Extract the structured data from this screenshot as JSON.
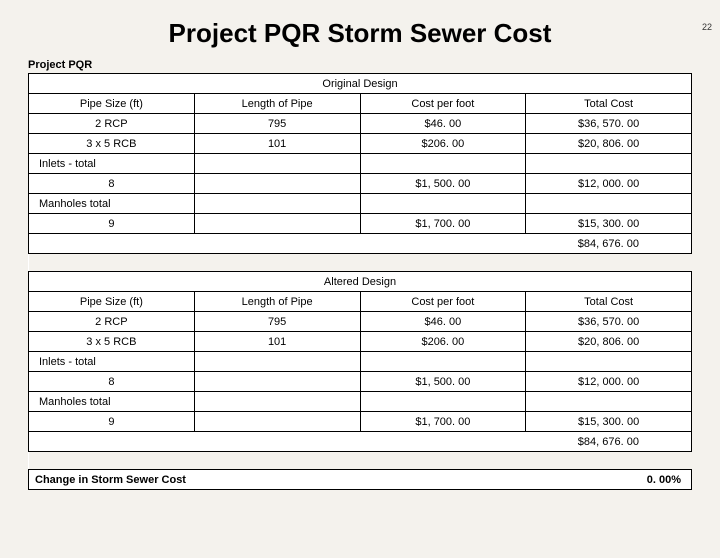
{
  "page_number": "22",
  "title": "Project PQR Storm Sewer Cost",
  "project_label": "Project PQR",
  "sections": {
    "original": {
      "header": "Original Design",
      "columns": [
        "Pipe Size (ft)",
        "Length of Pipe",
        "Cost per foot",
        "Total Cost"
      ],
      "rows": [
        [
          "2 RCP",
          "795",
          "$46. 00",
          "$36, 570. 00"
        ],
        [
          "3 x 5 RCB",
          "101",
          "$206. 00",
          "$20, 806. 00"
        ]
      ],
      "inlets_label": "Inlets - total",
      "inlets_row": [
        "8",
        "",
        "$1, 500. 00",
        "$12, 000. 00"
      ],
      "manholes_label": "Manholes total",
      "manholes_row": [
        "9",
        "",
        "$1, 700. 00",
        "$15, 300. 00"
      ],
      "total": "$84, 676. 00"
    },
    "altered": {
      "header": "Altered Design",
      "columns": [
        "Pipe Size (ft)",
        "Length of Pipe",
        "Cost per foot",
        "Total Cost"
      ],
      "rows": [
        [
          "2 RCP",
          "795",
          "$46. 00",
          "$36, 570. 00"
        ],
        [
          "3 x 5 RCB",
          "101",
          "$206. 00",
          "$20, 806. 00"
        ]
      ],
      "inlets_label": "Inlets - total",
      "inlets_row": [
        "8",
        "",
        "$1, 500. 00",
        "$12, 000. 00"
      ],
      "manholes_label": "Manholes total",
      "manholes_row": [
        "9",
        "",
        "$1, 700. 00",
        "$15, 300. 00"
      ],
      "total": "$84, 676. 00"
    }
  },
  "change_label": "Change in Storm Sewer Cost",
  "change_value": "0. 00%"
}
